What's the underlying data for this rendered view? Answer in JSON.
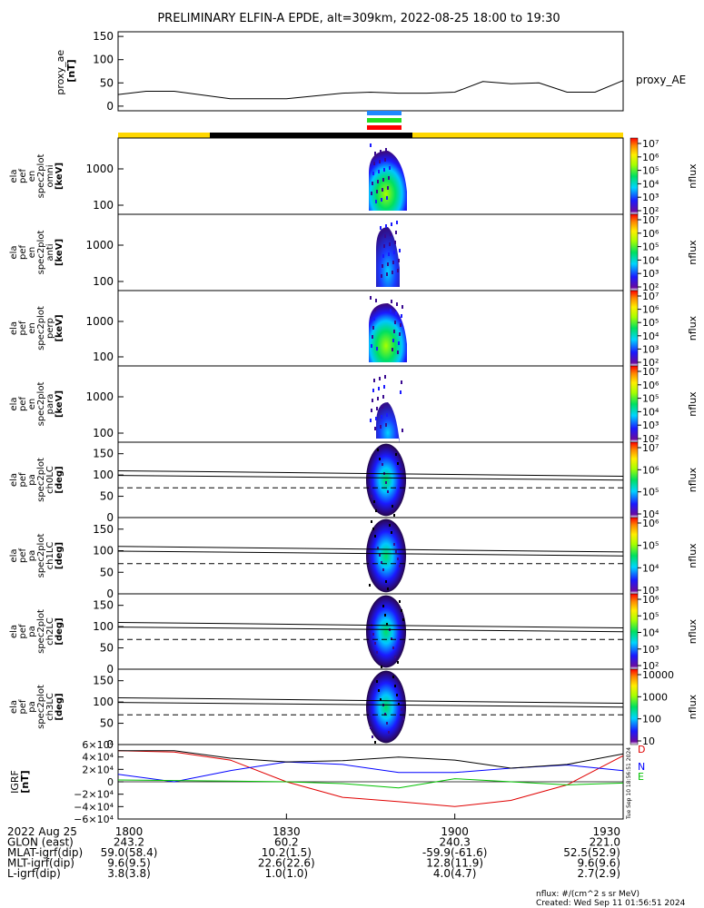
{
  "title": "PRELIMINARY ELFIN-A EPDE, alt=309km, 2022-08-25 18:00 to 19:30",
  "chart_data": [
    {
      "type": "line",
      "panel": "proxy_ae",
      "ylabel": [
        "proxy_ae",
        "[nT]"
      ],
      "yticks": [
        "150",
        "100",
        "50",
        "0"
      ],
      "ylim": [
        -10,
        160
      ],
      "series_label": "proxy_AE",
      "x_min": [
        0,
        5,
        10,
        20,
        30,
        40,
        45,
        50,
        55,
        60,
        65,
        70,
        75,
        80,
        85,
        90
      ],
      "values": [
        25,
        32,
        32,
        16,
        16,
        28,
        30,
        28,
        28,
        30,
        53,
        48,
        50,
        30,
        30,
        55
      ]
    },
    {
      "type": "heatmap",
      "panel": "energy spectrograms",
      "rows": [
        {
          "label": [
            "ela",
            "pef",
            "en",
            "spec2plot",
            "omni",
            "[keV]"
          ],
          "yticks": [
            "1000",
            "100"
          ],
          "colorbar": [
            "10⁷",
            "10⁶",
            "10⁵",
            "10⁴",
            "10³",
            "10²"
          ]
        },
        {
          "label": [
            "ela",
            "pef",
            "en",
            "spec2plot",
            "anti",
            "[keV]"
          ],
          "yticks": [
            "1000",
            "100"
          ],
          "colorbar": [
            "10⁷",
            "10⁶",
            "10⁵",
            "10⁴",
            "10³",
            "10²"
          ]
        },
        {
          "label": [
            "ela",
            "pef",
            "en",
            "spec2plot",
            "perp",
            "[keV]"
          ],
          "yticks": [
            "1000",
            "100"
          ],
          "colorbar": [
            "10⁷",
            "10⁶",
            "10⁵",
            "10⁴",
            "10³",
            "10²"
          ]
        },
        {
          "label": [
            "ela",
            "pef",
            "en",
            "spec2plot",
            "para",
            "[keV]"
          ],
          "yticks": [
            "1000",
            "100"
          ],
          "colorbar": [
            "10⁷",
            "10⁶",
            "10⁵",
            "10⁴",
            "10³",
            "10²"
          ]
        }
      ],
      "colorbar_label": "nflux"
    },
    {
      "type": "heatmap",
      "panel": "pitch-angle spectrograms",
      "rows": [
        {
          "label": [
            "ela",
            "pef",
            "pa",
            "spec2plot",
            "ch0LC",
            "[deg]"
          ],
          "yticks": [
            "150",
            "100",
            "50",
            "0"
          ],
          "colorbar": [
            "10⁷",
            "10⁶",
            "10⁵",
            "10⁴"
          ]
        },
        {
          "label": [
            "ela",
            "pef",
            "pa",
            "spec2plot",
            "ch1LC",
            "[deg]"
          ],
          "yticks": [
            "150",
            "100",
            "50",
            "0"
          ],
          "colorbar": [
            "10⁶",
            "10⁵",
            "10⁴",
            "10³"
          ]
        },
        {
          "label": [
            "ela",
            "pef",
            "pa",
            "spec2plot",
            "ch2LC",
            "[deg]"
          ],
          "yticks": [
            "150",
            "100",
            "50",
            "0"
          ],
          "colorbar": [
            "10⁶",
            "10⁵",
            "10⁴",
            "10³",
            "10²"
          ]
        },
        {
          "label": [
            "ela",
            "pef",
            "pa",
            "spec2plot",
            "ch3LC",
            "[deg]"
          ],
          "yticks": [
            "150",
            "100",
            "50",
            "0"
          ],
          "colorbar": [
            "10000",
            "1000",
            "100",
            "10"
          ]
        }
      ],
      "colorbar_label": "nflux"
    },
    {
      "type": "line",
      "panel": "IGRF",
      "ylabel": [
        "IGRF",
        "[nT]"
      ],
      "yticks": [
        "6×10⁴",
        "4×10⁴",
        "2×10⁴",
        "0",
        "−2×10⁴",
        "−4×10⁴",
        "−6×10⁴"
      ],
      "ylim": [
        -60000,
        60000
      ],
      "x_min": [
        0,
        10,
        20,
        30,
        40,
        50,
        60,
        70,
        80,
        90
      ],
      "series": [
        {
          "name": "D",
          "color": "#e00000",
          "values": [
            50000,
            48000,
            35000,
            0,
            -25000,
            -32000,
            -40000,
            -30000,
            -5000,
            42000
          ]
        },
        {
          "name": "N",
          "color": "#0000ff",
          "values": [
            12000,
            0,
            18000,
            32000,
            28000,
            15000,
            15000,
            22000,
            27000,
            18000
          ]
        },
        {
          "name": "E",
          "color": "#00c000",
          "values": [
            3000,
            2000,
            1000,
            0,
            -3000,
            -10000,
            5000,
            0,
            -5000,
            -2000
          ]
        },
        {
          "name": "",
          "color": "#000000",
          "values": [
            50000,
            50000,
            38000,
            32000,
            34000,
            40000,
            35000,
            22000,
            28000,
            45000
          ]
        }
      ]
    }
  ],
  "footer": {
    "rows": [
      [
        "2022 Aug 25",
        "1800",
        "1830",
        "1900",
        "1930"
      ],
      [
        "GLON (east)",
        "243.2",
        "60.2",
        "240.3",
        "221.0"
      ],
      [
        "MLAT-igrf(dip)",
        "59.0(58.4)",
        "10.2(1.5)",
        "-59.9(-61.6)",
        "52.5(52.9)"
      ],
      [
        "MLT-igrf(dip)",
        "9.6(9.5)",
        "22.6(22.6)",
        "12.8(11.9)",
        "9.6(9.6)"
      ],
      [
        "L-igrf(dip)",
        "3.8(3.8)",
        "1.0(1.0)",
        "4.0(4.7)",
        "2.7(2.9)"
      ]
    ],
    "nflux_note": "nflux: #/(cm^2 s sr MeV)",
    "created": "Created: Wed Sep 11 01:56:51 2024",
    "side_stamp": "Tue Sep 10 18:56:51 2024"
  },
  "colors": {
    "day_bar": "#ffd700",
    "night_bar": "#000000",
    "status_blue": "#1e88ff",
    "status_green": "#22dd22",
    "status_red": "#ff0000"
  }
}
